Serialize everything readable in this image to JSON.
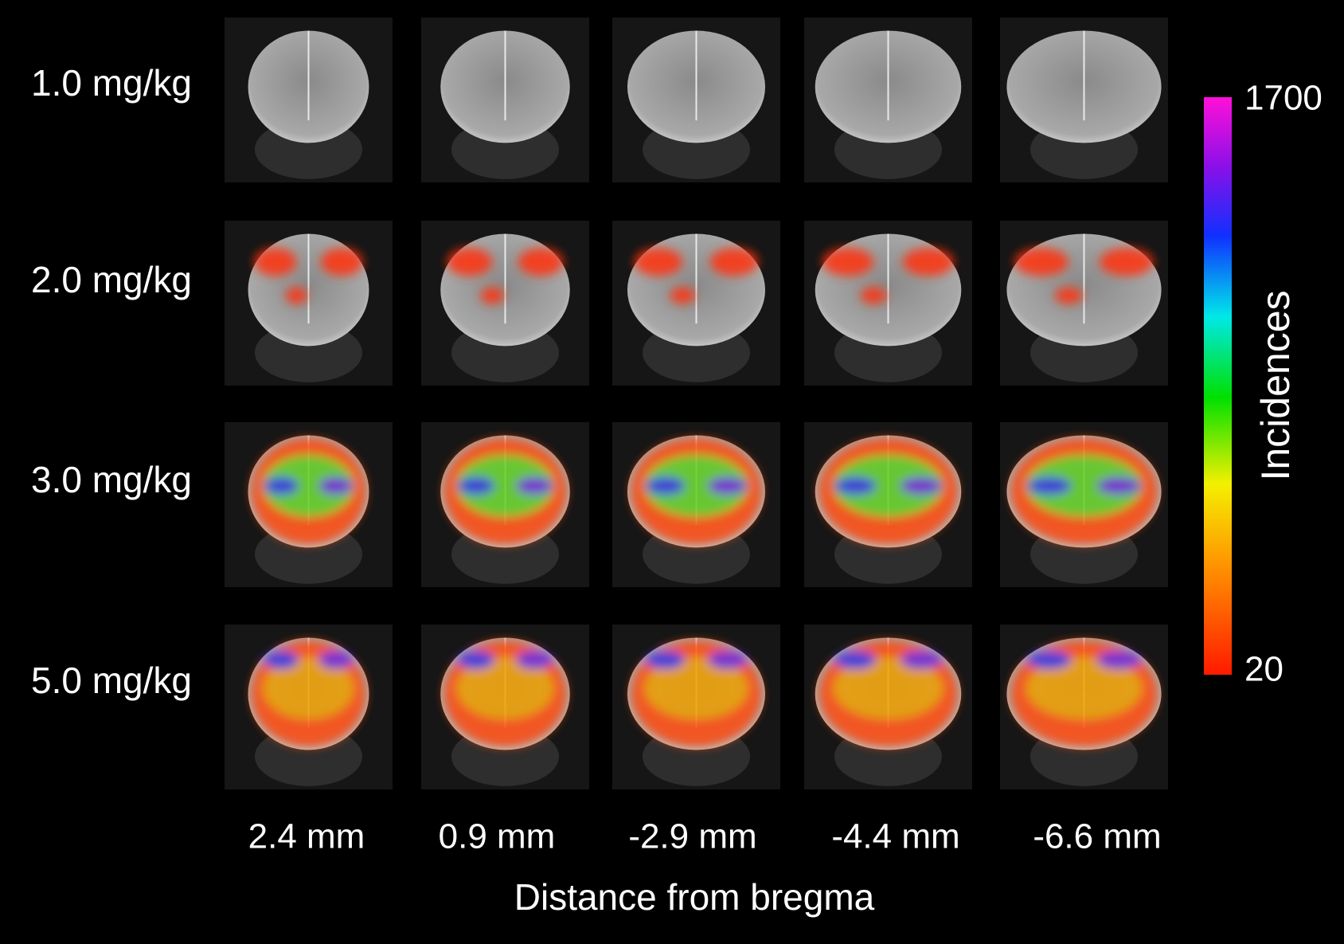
{
  "rows": [
    "1.0 mg/kg",
    "2.0 mg/kg",
    "3.0 mg/kg",
    "5.0 mg/kg"
  ],
  "columns": [
    "2.4 mm",
    "0.9 mm",
    "-2.9 mm",
    "-4.4 mm",
    "-6.6 mm"
  ],
  "x_label": "Distance from bregma",
  "colorbar": {
    "label": "Incidences",
    "max": "1700",
    "min": "20"
  }
}
